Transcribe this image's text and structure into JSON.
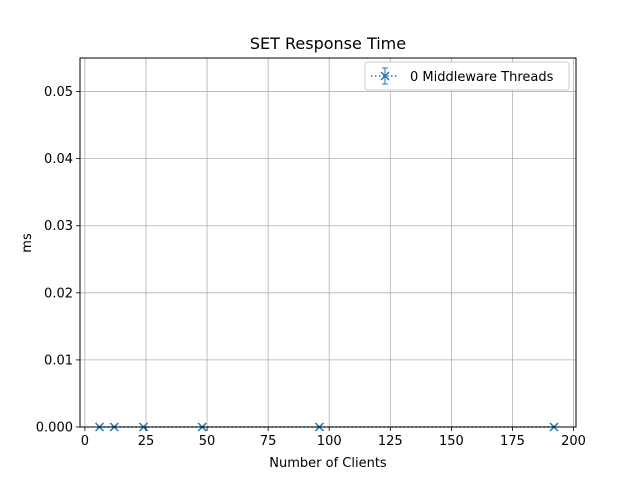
{
  "chart_data": {
    "type": "line",
    "title": "SET Response Time",
    "xlabel": "Number of Clients",
    "ylabel": "ms",
    "xlim": [
      -2,
      201
    ],
    "ylim": [
      0,
      0.055
    ],
    "xticks": [
      0,
      25,
      50,
      75,
      100,
      125,
      150,
      175,
      200
    ],
    "xtick_labels": [
      "0",
      "25",
      "50",
      "75",
      "100",
      "125",
      "150",
      "175",
      "200"
    ],
    "yticks": [
      0,
      0.01,
      0.02,
      0.03,
      0.04,
      0.05
    ],
    "ytick_labels": [
      "0.000",
      "0.01",
      "0.02",
      "0.03",
      "0.04",
      "0.05"
    ],
    "grid": true,
    "legend_position": "top-right",
    "series": [
      {
        "name": "0 Middleware Threads",
        "color": "#1f77b4",
        "line_style": "dotted",
        "marker": "x",
        "error_bars": true,
        "x": [
          6,
          12,
          24,
          48,
          96,
          192
        ],
        "y": [
          0,
          0,
          0,
          0,
          0,
          0
        ]
      }
    ]
  }
}
